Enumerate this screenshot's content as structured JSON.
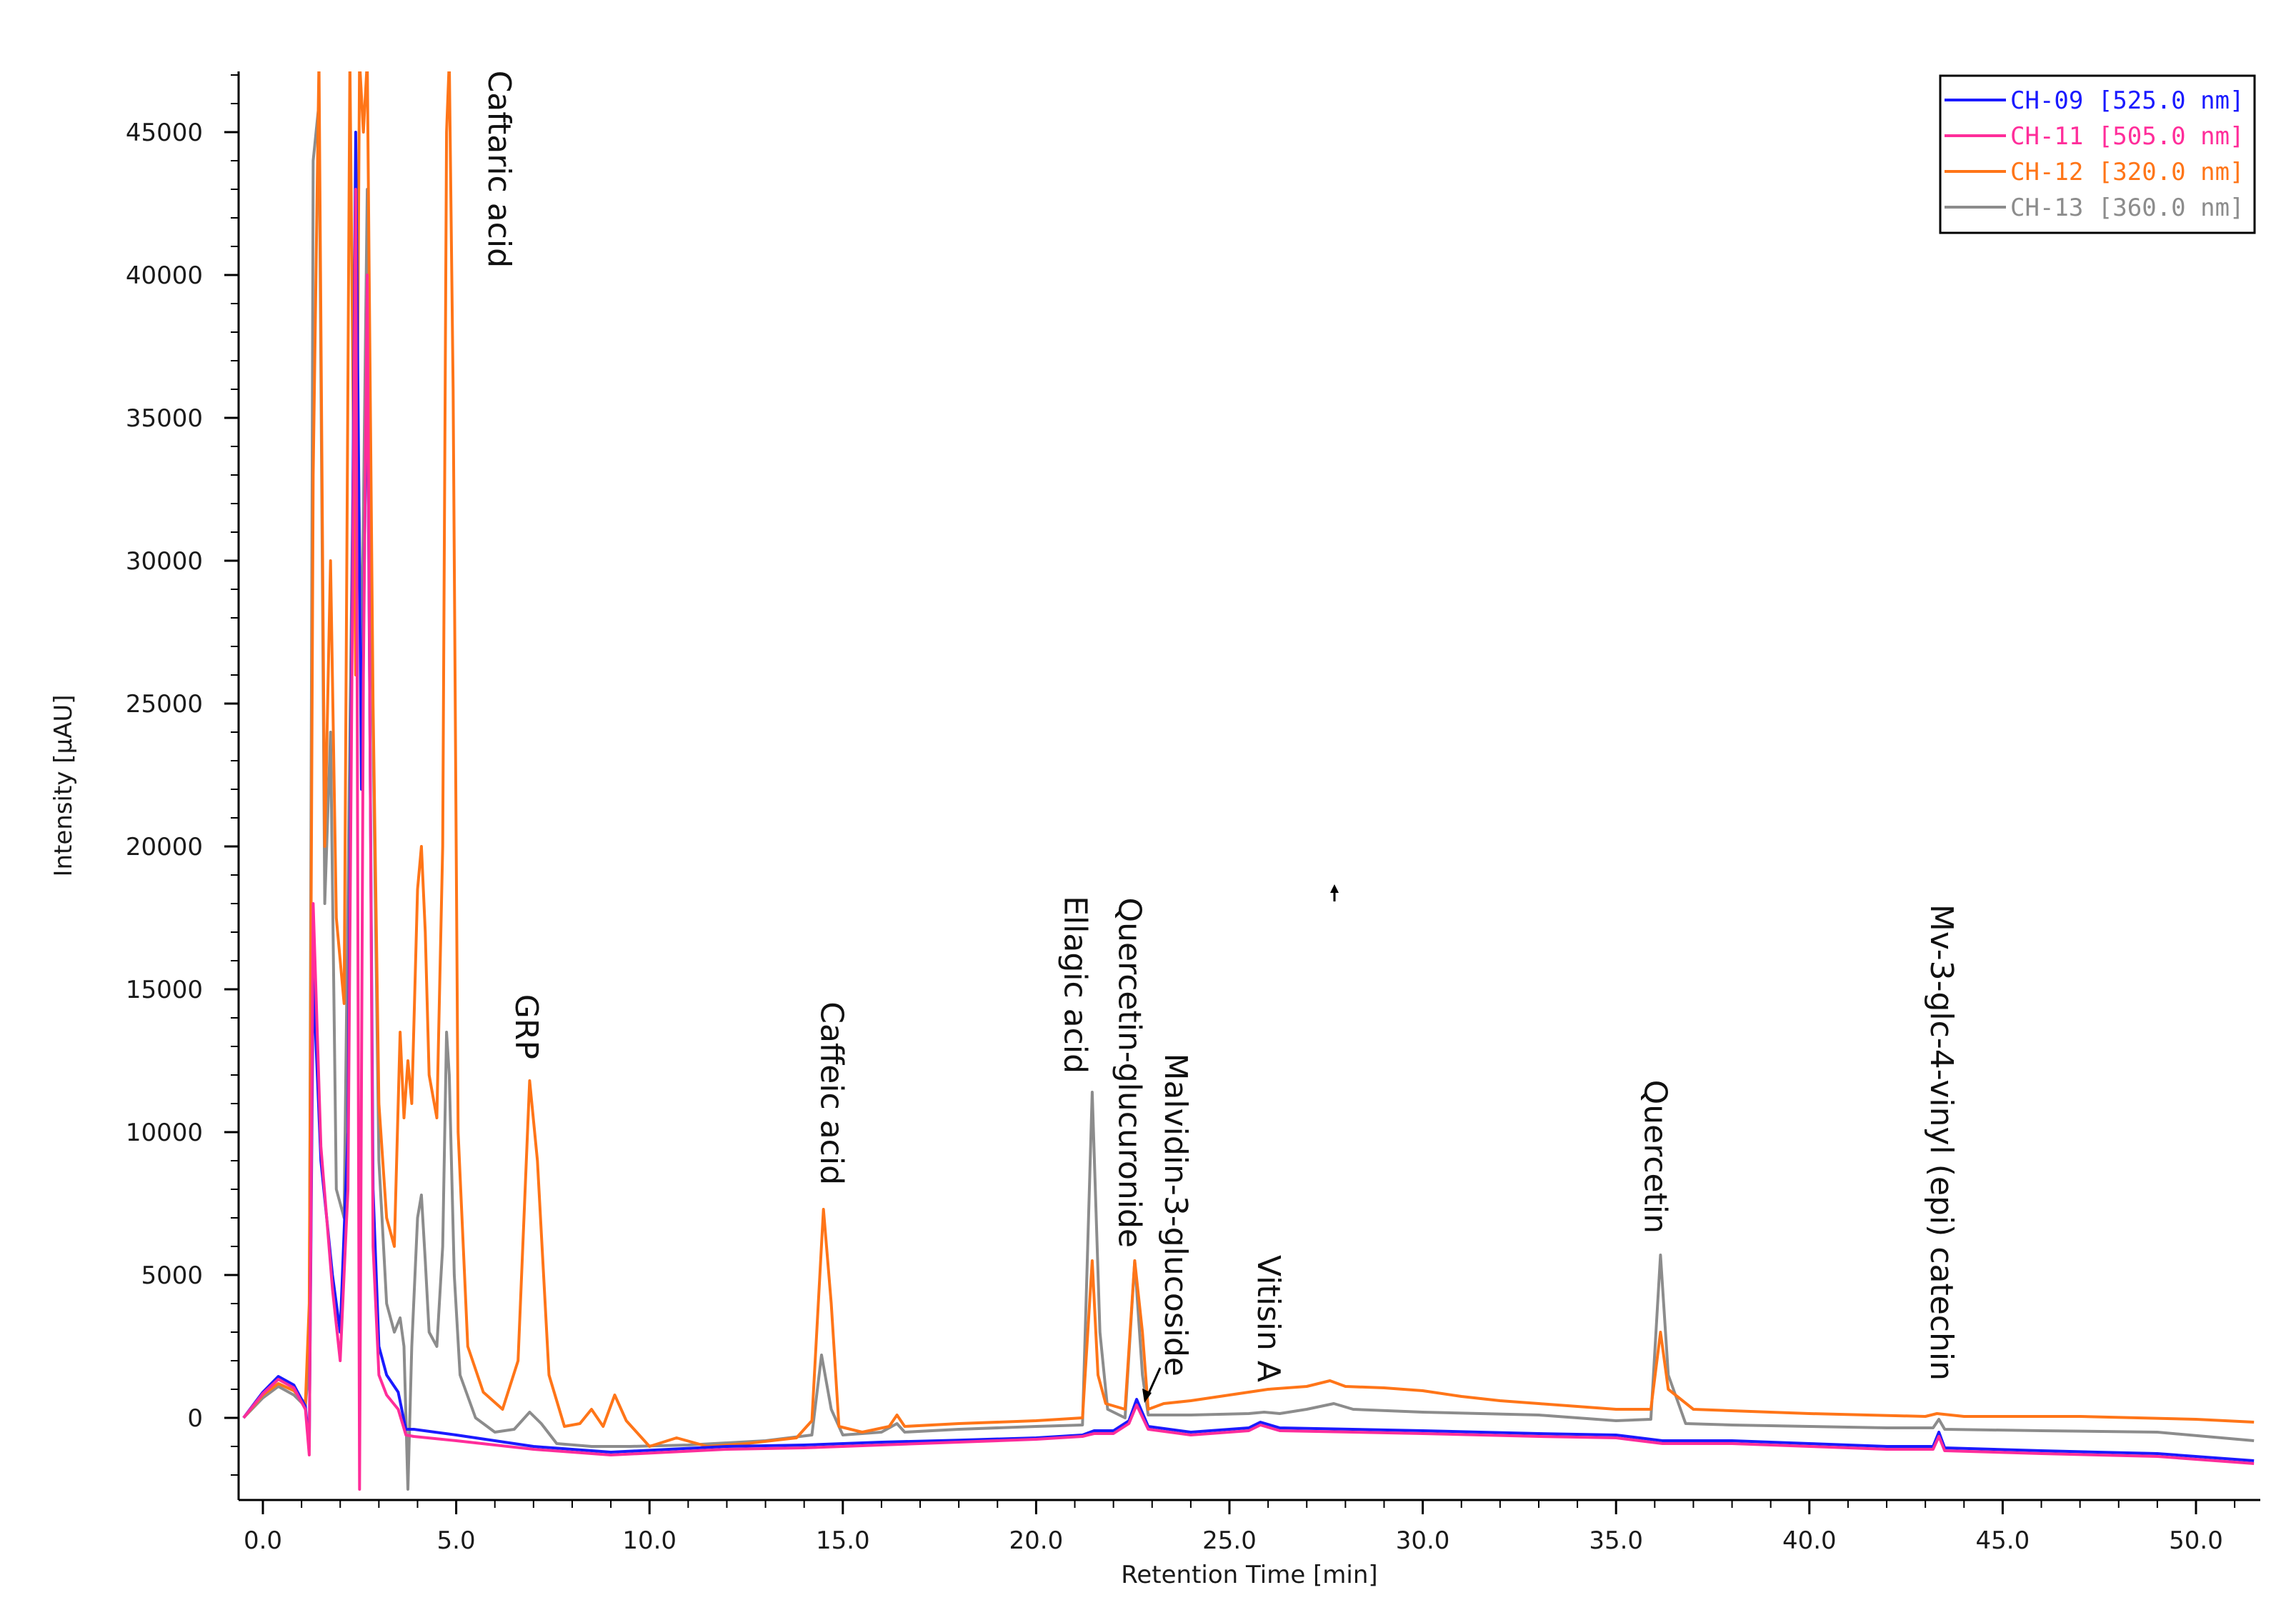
{
  "chart_data": {
    "type": "line",
    "title": "",
    "xlabel": "Retention Time [min]",
    "ylabel": "Intensity [µAU]",
    "xlim": [
      -0.5,
      51.5
    ],
    "ylim": [
      -2500,
      47500
    ],
    "x_ticks": [
      0,
      5,
      10,
      15,
      20,
      25,
      30,
      35,
      40,
      45,
      50
    ],
    "x_tick_labels": [
      "0.0",
      "5.0",
      "10.0",
      "15.0",
      "20.0",
      "25.0",
      "30.0",
      "35.0",
      "40.0",
      "45.0",
      "50.0"
    ],
    "y_ticks": [
      0,
      5000,
      10000,
      15000,
      20000,
      25000,
      30000,
      35000,
      40000,
      45000
    ],
    "y_tick_labels": [
      "0",
      "5000",
      "10000",
      "15000",
      "20000",
      "25000",
      "30000",
      "35000",
      "40000",
      "45000"
    ],
    "grid": false,
    "legend_position": "top-right",
    "series": [
      {
        "name": "CH-09 [525.0 nm]",
        "color": "#1a1aff",
        "points": [
          [
            -0.5,
            0
          ],
          [
            0,
            900
          ],
          [
            0.4,
            1450
          ],
          [
            0.8,
            1150
          ],
          [
            1.1,
            400
          ],
          [
            1.2,
            -1000
          ],
          [
            1.3,
            15500
          ],
          [
            1.5,
            9000
          ],
          [
            1.8,
            5000
          ],
          [
            2.0,
            3000
          ],
          [
            2.2,
            10000
          ],
          [
            2.4,
            45000
          ],
          [
            2.55,
            22000
          ],
          [
            2.7,
            38000
          ],
          [
            2.85,
            8000
          ],
          [
            3.0,
            2500
          ],
          [
            3.2,
            1500
          ],
          [
            3.5,
            900
          ],
          [
            3.7,
            -400
          ],
          [
            3.9,
            -400
          ],
          [
            5.0,
            -600
          ],
          [
            7.0,
            -1000
          ],
          [
            9.0,
            -1200
          ],
          [
            10.5,
            -1100
          ],
          [
            12.0,
            -1000
          ],
          [
            14.0,
            -950
          ],
          [
            16.0,
            -850
          ],
          [
            18.0,
            -780
          ],
          [
            20.0,
            -700
          ],
          [
            21.2,
            -600
          ],
          [
            21.5,
            -450
          ],
          [
            22.0,
            -450
          ],
          [
            22.4,
            -100
          ],
          [
            22.6,
            650
          ],
          [
            22.9,
            -300
          ],
          [
            24.0,
            -500
          ],
          [
            25.5,
            -350
          ],
          [
            25.8,
            -150
          ],
          [
            26.3,
            -350
          ],
          [
            30.0,
            -450
          ],
          [
            33.0,
            -550
          ],
          [
            35.0,
            -600
          ],
          [
            36.2,
            -800
          ],
          [
            38.0,
            -800
          ],
          [
            40.0,
            -900
          ],
          [
            42.0,
            -1000
          ],
          [
            43.2,
            -1000
          ],
          [
            43.35,
            -500
          ],
          [
            43.5,
            -1050
          ],
          [
            46.0,
            -1150
          ],
          [
            49.0,
            -1250
          ],
          [
            51.5,
            -1500
          ]
        ]
      },
      {
        "name": "CH-11 [505.0 nm]",
        "color": "#ff2d9a",
        "points": [
          [
            -0.5,
            0
          ],
          [
            0,
            850
          ],
          [
            0.4,
            1350
          ],
          [
            0.8,
            1050
          ],
          [
            1.1,
            300
          ],
          [
            1.2,
            -1300
          ],
          [
            1.3,
            18000
          ],
          [
            1.5,
            9500
          ],
          [
            1.8,
            4500
          ],
          [
            2.0,
            2000
          ],
          [
            2.2,
            8000
          ],
          [
            2.4,
            43000
          ],
          [
            2.5,
            -2500
          ],
          [
            2.6,
            26000
          ],
          [
            2.7,
            40000
          ],
          [
            2.85,
            6000
          ],
          [
            3.0,
            1500
          ],
          [
            3.2,
            800
          ],
          [
            3.5,
            300
          ],
          [
            3.7,
            -600
          ],
          [
            3.9,
            -650
          ],
          [
            5.0,
            -800
          ],
          [
            7.0,
            -1100
          ],
          [
            9.0,
            -1300
          ],
          [
            10.5,
            -1200
          ],
          [
            12.0,
            -1100
          ],
          [
            14.0,
            -1050
          ],
          [
            16.0,
            -950
          ],
          [
            18.0,
            -850
          ],
          [
            20.0,
            -750
          ],
          [
            21.2,
            -650
          ],
          [
            21.5,
            -550
          ],
          [
            22.0,
            -550
          ],
          [
            22.4,
            -200
          ],
          [
            22.6,
            450
          ],
          [
            22.9,
            -400
          ],
          [
            24.0,
            -600
          ],
          [
            25.5,
            -450
          ],
          [
            25.8,
            -250
          ],
          [
            26.3,
            -450
          ],
          [
            30.0,
            -550
          ],
          [
            33.0,
            -650
          ],
          [
            35.0,
            -700
          ],
          [
            36.2,
            -900
          ],
          [
            38.0,
            -900
          ],
          [
            40.0,
            -1000
          ],
          [
            42.0,
            -1100
          ],
          [
            43.2,
            -1100
          ],
          [
            43.35,
            -650
          ],
          [
            43.5,
            -1150
          ],
          [
            46.0,
            -1250
          ],
          [
            49.0,
            -1350
          ],
          [
            51.5,
            -1600
          ]
        ]
      },
      {
        "name": "CH-12 [320.0 nm]",
        "color": "#ff7518",
        "points": [
          [
            -0.5,
            0
          ],
          [
            0,
            800
          ],
          [
            0.4,
            1200
          ],
          [
            0.8,
            950
          ],
          [
            1.1,
            500
          ],
          [
            1.2,
            4000
          ],
          [
            1.3,
            33000
          ],
          [
            1.45,
            47500
          ],
          [
            1.6,
            20000
          ],
          [
            1.75,
            30000
          ],
          [
            1.9,
            17500
          ],
          [
            2.1,
            14500
          ],
          [
            2.25,
            47500
          ],
          [
            2.4,
            26000
          ],
          [
            2.5,
            47500
          ],
          [
            2.6,
            45000
          ],
          [
            2.7,
            47500
          ],
          [
            2.85,
            25000
          ],
          [
            3.0,
            11000
          ],
          [
            3.2,
            7000
          ],
          [
            3.4,
            6000
          ],
          [
            3.55,
            13500
          ],
          [
            3.65,
            10500
          ],
          [
            3.75,
            12500
          ],
          [
            3.85,
            11000
          ],
          [
            4.0,
            18500
          ],
          [
            4.1,
            20000
          ],
          [
            4.2,
            17000
          ],
          [
            4.3,
            12000
          ],
          [
            4.5,
            10500
          ],
          [
            4.65,
            20000
          ],
          [
            4.75,
            45000
          ],
          [
            4.82,
            47500
          ],
          [
            4.92,
            36000
          ],
          [
            5.05,
            10000
          ],
          [
            5.3,
            2500
          ],
          [
            5.7,
            900
          ],
          [
            6.2,
            300
          ],
          [
            6.6,
            2000
          ],
          [
            6.9,
            11800
          ],
          [
            7.1,
            9000
          ],
          [
            7.4,
            1500
          ],
          [
            7.8,
            -300
          ],
          [
            8.2,
            -200
          ],
          [
            8.5,
            300
          ],
          [
            8.8,
            -300
          ],
          [
            9.1,
            800
          ],
          [
            9.4,
            -100
          ],
          [
            10.0,
            -1000
          ],
          [
            10.7,
            -700
          ],
          [
            11.5,
            -1000
          ],
          [
            12.5,
            -900
          ],
          [
            13.8,
            -700
          ],
          [
            14.2,
            -100
          ],
          [
            14.5,
            7300
          ],
          [
            14.7,
            4000
          ],
          [
            14.9,
            -300
          ],
          [
            15.5,
            -500
          ],
          [
            16.2,
            -300
          ],
          [
            16.4,
            100
          ],
          [
            16.6,
            -300
          ],
          [
            18.0,
            -200
          ],
          [
            20.0,
            -100
          ],
          [
            21.2,
            0
          ],
          [
            21.45,
            5500
          ],
          [
            21.6,
            1500
          ],
          [
            21.8,
            500
          ],
          [
            22.3,
            300
          ],
          [
            22.55,
            5500
          ],
          [
            22.75,
            3000
          ],
          [
            22.9,
            300
          ],
          [
            23.3,
            500
          ],
          [
            24.0,
            600
          ],
          [
            25.0,
            800
          ],
          [
            26.0,
            1000
          ],
          [
            27.0,
            1100
          ],
          [
            27.6,
            1300
          ],
          [
            28.0,
            1100
          ],
          [
            29.0,
            1050
          ],
          [
            30.0,
            950
          ],
          [
            31.0,
            750
          ],
          [
            32.0,
            600
          ],
          [
            33.0,
            500
          ],
          [
            35.0,
            300
          ],
          [
            35.9,
            300
          ],
          [
            36.15,
            3000
          ],
          [
            36.35,
            1000
          ],
          [
            37.0,
            300
          ],
          [
            40.0,
            150
          ],
          [
            43.0,
            50
          ],
          [
            43.3,
            150
          ],
          [
            44.0,
            50
          ],
          [
            47.0,
            50
          ],
          [
            50.0,
            -50
          ],
          [
            51.5,
            -150
          ]
        ]
      },
      {
        "name": "CH-13 [360.0 nm]",
        "color": "#8c8c8c",
        "points": [
          [
            -0.5,
            0
          ],
          [
            0,
            700
          ],
          [
            0.4,
            1100
          ],
          [
            0.8,
            800
          ],
          [
            1.1,
            400
          ],
          [
            1.2,
            2000
          ],
          [
            1.3,
            44000
          ],
          [
            1.45,
            46000
          ],
          [
            1.6,
            18000
          ],
          [
            1.75,
            24000
          ],
          [
            1.9,
            8000
          ],
          [
            2.1,
            7000
          ],
          [
            2.25,
            24000
          ],
          [
            2.4,
            40000
          ],
          [
            2.55,
            26000
          ],
          [
            2.7,
            43000
          ],
          [
            2.85,
            24000
          ],
          [
            3.0,
            9000
          ],
          [
            3.2,
            4000
          ],
          [
            3.4,
            3000
          ],
          [
            3.55,
            3500
          ],
          [
            3.65,
            2500
          ],
          [
            3.75,
            -2500
          ],
          [
            3.85,
            2500
          ],
          [
            4.0,
            7000
          ],
          [
            4.1,
            7800
          ],
          [
            4.2,
            5500
          ],
          [
            4.3,
            3000
          ],
          [
            4.5,
            2500
          ],
          [
            4.65,
            6000
          ],
          [
            4.75,
            13500
          ],
          [
            4.82,
            12000
          ],
          [
            4.95,
            5000
          ],
          [
            5.1,
            1500
          ],
          [
            5.5,
            0
          ],
          [
            6.0,
            -500
          ],
          [
            6.5,
            -400
          ],
          [
            6.9,
            200
          ],
          [
            7.2,
            -200
          ],
          [
            7.6,
            -900
          ],
          [
            8.5,
            -1000
          ],
          [
            9.5,
            -1000
          ],
          [
            11.0,
            -950
          ],
          [
            13.0,
            -800
          ],
          [
            14.2,
            -600
          ],
          [
            14.45,
            2200
          ],
          [
            14.7,
            300
          ],
          [
            15.0,
            -600
          ],
          [
            16.0,
            -500
          ],
          [
            16.4,
            -200
          ],
          [
            16.6,
            -500
          ],
          [
            18.0,
            -400
          ],
          [
            20.0,
            -300
          ],
          [
            21.2,
            -250
          ],
          [
            21.45,
            11400
          ],
          [
            21.65,
            3000
          ],
          [
            21.85,
            300
          ],
          [
            22.3,
            0
          ],
          [
            22.55,
            5500
          ],
          [
            22.75,
            1500
          ],
          [
            22.9,
            100
          ],
          [
            24.0,
            100
          ],
          [
            25.5,
            150
          ],
          [
            25.9,
            200
          ],
          [
            26.3,
            150
          ],
          [
            27.0,
            300
          ],
          [
            27.7,
            500
          ],
          [
            28.2,
            300
          ],
          [
            30.0,
            200
          ],
          [
            33.0,
            100
          ],
          [
            35.0,
            -100
          ],
          [
            35.9,
            -50
          ],
          [
            36.15,
            5700
          ],
          [
            36.35,
            1500
          ],
          [
            36.8,
            -200
          ],
          [
            38.0,
            -250
          ],
          [
            40.0,
            -300
          ],
          [
            42.0,
            -350
          ],
          [
            43.2,
            -350
          ],
          [
            43.35,
            -50
          ],
          [
            43.5,
            -400
          ],
          [
            46.0,
            -450
          ],
          [
            49.0,
            -500
          ],
          [
            51.5,
            -800
          ]
        ]
      }
    ],
    "peak_annotations": [
      {
        "label": "Caftaric acid",
        "x": 6.1,
        "y": 40000
      },
      {
        "label": "GRP",
        "x": 6.8,
        "y": 12300
      },
      {
        "label": "Caffeic acid",
        "x": 14.7,
        "y": 7900
      },
      {
        "label": "Ellagic acid",
        "x": 21.0,
        "y": 11800
      },
      {
        "label": "Quercetin-glucuronide",
        "x": 22.4,
        "y": 5700
      },
      {
        "label": "Malvidin-3-glucoside",
        "x": 23.6,
        "y": 1200
      },
      {
        "label": "Vitisin A",
        "x": 26.0,
        "y": 1000
      },
      {
        "label": "Quercetin",
        "x": 36.0,
        "y": 6200
      },
      {
        "label": "Mv-3-glc-4-vinyl (epi) catechin",
        "x": 43.4,
        "y": 1050
      }
    ]
  }
}
